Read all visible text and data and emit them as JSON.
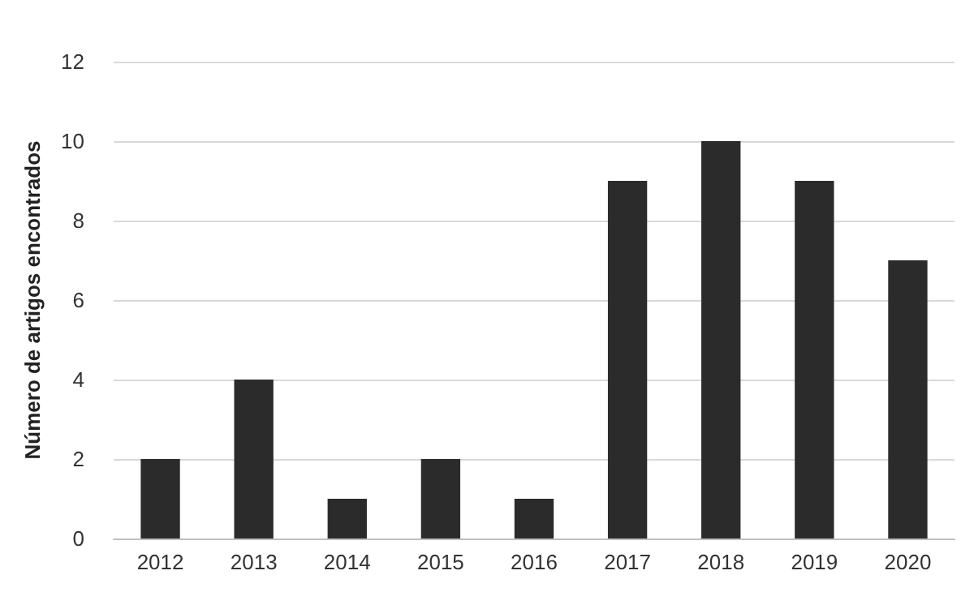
{
  "chart_data": {
    "type": "bar",
    "ylabel": "Número de artigos encontrados",
    "categories": [
      "2012",
      "2013",
      "2014",
      "2015",
      "2016",
      "2017",
      "2018",
      "2019",
      "2020"
    ],
    "values": [
      2,
      4,
      1,
      2,
      1,
      9,
      10,
      9,
      7
    ],
    "color": "#2b2b2b",
    "ylim": [
      0,
      12
    ],
    "yticks": [
      0,
      2,
      4,
      6,
      8,
      10,
      12
    ],
    "grid": "y"
  }
}
